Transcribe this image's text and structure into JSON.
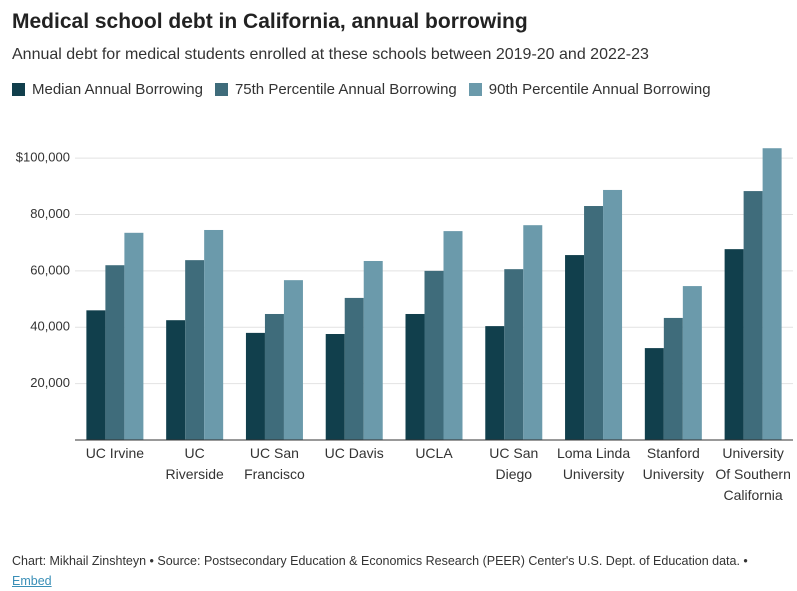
{
  "chart_data": {
    "type": "bar",
    "title": "Medical school debt in California, annual borrowing",
    "subtitle": "Annual debt for medical students enrolled at these schools between 2019-20 and 2022-23",
    "categories": [
      "UC Irvine",
      "UC Riverside",
      "UC San Francisco",
      "UC Davis",
      "UCLA",
      "UC San Diego",
      "Loma Linda University",
      "Stanford University",
      "University Of Southern California"
    ],
    "series": [
      {
        "name": "Median Annual Borrowing",
        "color": "#113f4c",
        "values": [
          46000,
          42500,
          38000,
          37600,
          44700,
          40400,
          65600,
          32600,
          67700
        ]
      },
      {
        "name": "75th Percentile Annual Borrowing",
        "color": "#3f6c7b",
        "values": [
          62000,
          63800,
          44700,
          50400,
          60000,
          60600,
          83000,
          43300,
          88300
        ]
      },
      {
        "name": "90th Percentile Annual Borrowing",
        "color": "#6b9aab",
        "values": [
          73500,
          74500,
          56700,
          63500,
          74100,
          76200,
          88700,
          54600,
          103500
        ]
      }
    ],
    "ylim": [
      0,
      105000
    ],
    "yticks": [
      {
        "value": 20000,
        "label": "20,000"
      },
      {
        "value": 40000,
        "label": "40,000"
      },
      {
        "value": 60000,
        "label": "60,000"
      },
      {
        "value": 80000,
        "label": "80,000"
      },
      {
        "value": 100000,
        "label": "$100,000"
      }
    ],
    "grid": true,
    "footer": "Chart: Mikhail Zinshteyn • Source: Postsecondary Education & Economics Research (PEER) Center's U.S. Dept. of Education data. •",
    "link": "Embed"
  }
}
